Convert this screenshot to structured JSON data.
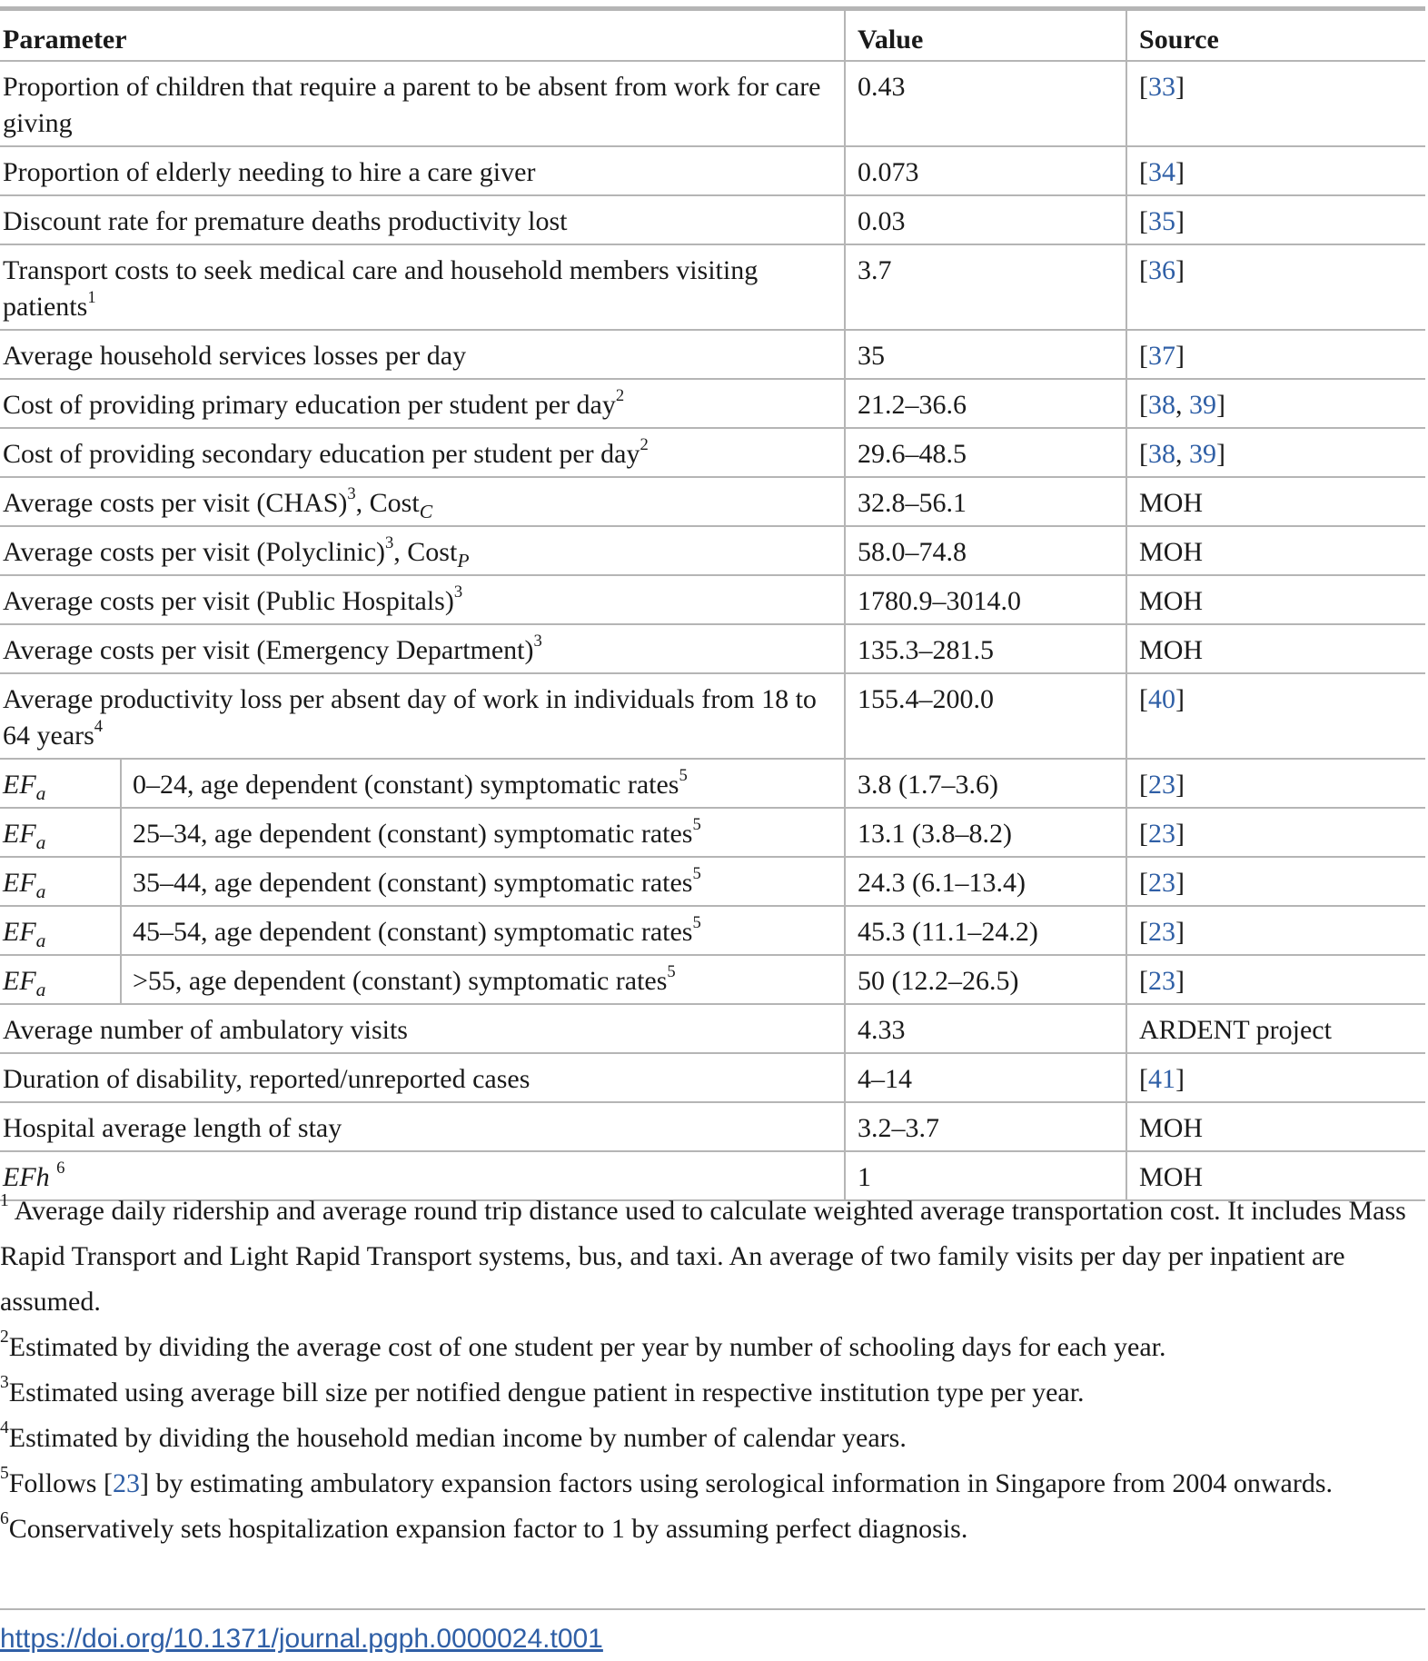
{
  "table": {
    "headers": {
      "parameter": "Parameter",
      "value": "Value",
      "source": "Source"
    },
    "rows": [
      {
        "parameter": "Proportion of children that require a parent to be absent from work for care giving",
        "value": "0.43",
        "source_refs": [
          "33"
        ]
      },
      {
        "parameter": "Proportion of elderly needing to hire a care giver",
        "value": "0.073",
        "source_refs": [
          "34"
        ]
      },
      {
        "parameter": "Discount rate for premature deaths productivity lost",
        "value": "0.03",
        "source_refs": [
          "35"
        ]
      },
      {
        "parameter": "Transport costs to seek medical care and household members visiting patients",
        "note": "1",
        "value": "3.7",
        "source_refs": [
          "36"
        ]
      },
      {
        "parameter": "Average household services losses per day",
        "value": "35",
        "source_refs": [
          "37"
        ]
      },
      {
        "parameter": "Cost of providing primary education per student per day",
        "note": "2",
        "value": "21.2–36.6",
        "source_refs": [
          "38",
          "39"
        ]
      },
      {
        "parameter": "Cost of providing secondary education per student per day",
        "note": "2",
        "value": "29.6–48.5",
        "source_refs": [
          "38",
          "39"
        ]
      },
      {
        "parameter": "Average costs per visit (CHAS)",
        "note": "3",
        "suffix": ", Cost",
        "subscript": "C",
        "value": "32.8–56.1",
        "source": "MOH"
      },
      {
        "parameter": "Average costs per visit (Polyclinic)",
        "note": "3",
        "suffix": ", Cost",
        "subscript": "P",
        "value": "58.0–74.8",
        "source": "MOH"
      },
      {
        "parameter": "Average costs per visit (Public Hospitals)",
        "note": "3",
        "value": "1780.9–3014.0",
        "source": "MOH"
      },
      {
        "parameter": "Average costs per visit (Emergency Department)",
        "note": "3",
        "value": "135.3–281.5",
        "source": "MOH"
      },
      {
        "parameter": "Average productivity loss per absent day of work in individuals from 18 to 64 years",
        "note": "4",
        "value": "155.4–200.0",
        "source_refs": [
          "40"
        ]
      }
    ],
    "ef_rows": [
      {
        "symbol": "EF",
        "subscript": "a",
        "group": "0–24, age dependent (constant) symptomatic rates",
        "note": "5",
        "value": "3.8 (1.7–3.6)",
        "source_refs": [
          "23"
        ]
      },
      {
        "symbol": "EF",
        "subscript": "a",
        "group": "25–34, age dependent (constant) symptomatic rates",
        "note": "5",
        "value": "13.1 (3.8–8.2)",
        "source_refs": [
          "23"
        ]
      },
      {
        "symbol": "EF",
        "subscript": "a",
        "group": "35–44, age dependent (constant) symptomatic rates",
        "note": "5",
        "value": "24.3 (6.1–13.4)",
        "source_refs": [
          "23"
        ]
      },
      {
        "symbol": "EF",
        "subscript": "a",
        "group": "45–54, age dependent (constant) symptomatic rates",
        "note": "5",
        "value": "45.3 (11.1–24.2)",
        "source_refs": [
          "23"
        ]
      },
      {
        "symbol": "EF",
        "subscript": "a",
        "group": ">55, age dependent (constant) symptomatic rates",
        "note": "5",
        "value": "50 (12.2–26.5)",
        "source_refs": [
          "23"
        ]
      }
    ],
    "tail_rows": [
      {
        "parameter": "Average number of ambulatory visits",
        "value": "4.33",
        "source": "ARDENT project"
      },
      {
        "parameter": "Duration of disability, reported/unreported cases",
        "value": "4–14",
        "source_refs": [
          "41"
        ]
      },
      {
        "parameter": "Hospital average length of stay",
        "value": "3.2–3.7",
        "source": "MOH"
      },
      {
        "parameter": "EFh",
        "italic": true,
        "note": "6",
        "value": "1",
        "source": "MOH"
      }
    ]
  },
  "footnotes": [
    {
      "mark": "1",
      "text": " Average daily ridership and average round trip distance used to calculate weighted average transportation cost. It includes Mass Rapid Transport and Light Rapid Transport systems, bus, and taxi. An average of two family visits per day per inpatient are assumed."
    },
    {
      "mark": "2",
      "text": "Estimated by dividing the average cost of one student per year by number of schooling days for each year."
    },
    {
      "mark": "3",
      "text": "Estimated using average bill size per notified dengue patient in respective institution type per year."
    },
    {
      "mark": "4",
      "text": "Estimated by dividing the household median income by number of calendar years."
    },
    {
      "mark": "5",
      "text_before": "Follows ",
      "ref": "23",
      "text_after": " by estimating ambulatory expansion factors using serological information in Singapore from 2004 onwards."
    },
    {
      "mark": "6",
      "text": "Conservatively sets hospitalization expansion factor to 1 by assuming perfect diagnosis."
    }
  ],
  "doi": "https://doi.org/10.1371/journal.pgph.0000024.t001",
  "colors": {
    "link": "#2f5fa6",
    "rule": "#b5b5b5",
    "text": "#1a1a1a"
  }
}
